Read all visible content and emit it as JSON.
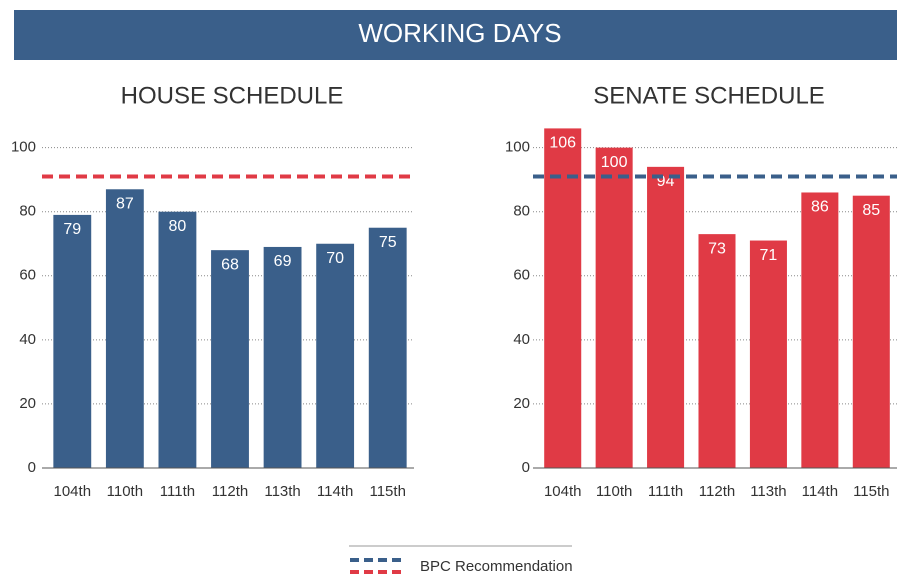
{
  "header": {
    "title": "WORKING DAYS"
  },
  "chart_data": [
    {
      "type": "bar",
      "title": "HOUSE SCHEDULE",
      "categories": [
        "104th",
        "110th",
        "111th",
        "112th",
        "113th",
        "114th",
        "115th"
      ],
      "values": [
        79,
        87,
        80,
        68,
        69,
        70,
        75
      ],
      "color": "#3a5f8a",
      "ylim": [
        0,
        108
      ],
      "yticks": [
        0,
        20,
        40,
        60,
        80,
        100
      ],
      "grid": true,
      "reference_line": {
        "name": "BPC Recommendation",
        "value": 91,
        "color": "#e03a45"
      }
    },
    {
      "type": "bar",
      "title": "SENATE SCHEDULE",
      "categories": [
        "104th",
        "110th",
        "111th",
        "112th",
        "113th",
        "114th",
        "115th"
      ],
      "values": [
        106,
        100,
        94,
        73,
        71,
        86,
        85
      ],
      "color": "#e03a45",
      "ylim": [
        0,
        108
      ],
      "yticks": [
        0,
        20,
        40,
        60,
        80,
        100
      ],
      "grid": true,
      "reference_line": {
        "name": "BPC Recommendation",
        "value": 91,
        "color": "#3a5f8a"
      }
    }
  ]
}
